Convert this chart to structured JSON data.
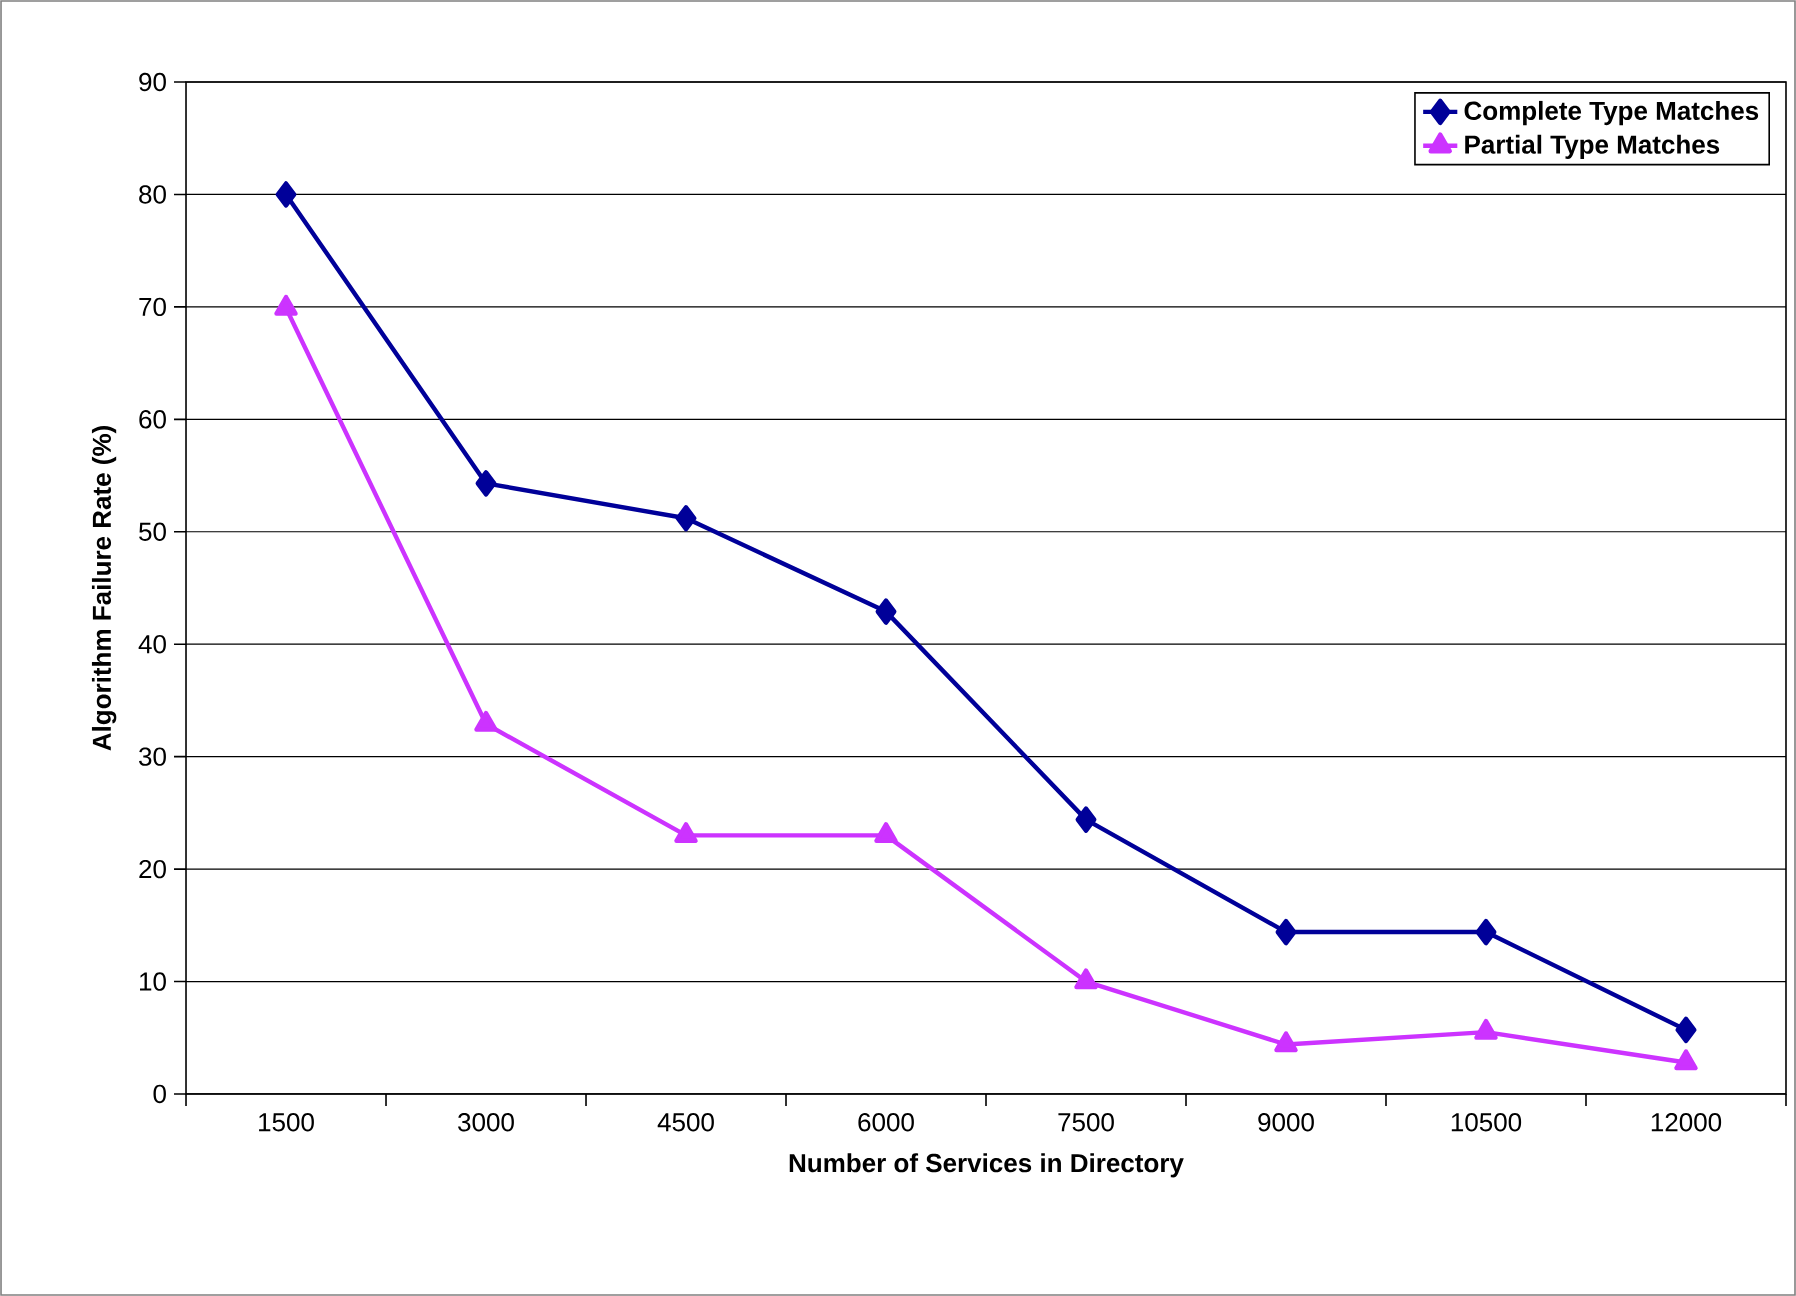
{
  "chart_data": {
    "type": "line",
    "xlabel": "Number of Services in Directory",
    "ylabel": "Algorithm Failure Rate (%)",
    "categories": [
      "1500",
      "3000",
      "4500",
      "6000",
      "7500",
      "9000",
      "10500",
      "12000"
    ],
    "series": [
      {
        "name": "Complete Type Matches",
        "color": "#000099",
        "marker": "diamond",
        "values": [
          80,
          54.3,
          51.2,
          42.9,
          24.4,
          14.4,
          14.4,
          5.7
        ]
      },
      {
        "name": "Partial Type Matches",
        "color": "#cc33ff",
        "marker": "triangle",
        "values": [
          69.9,
          32.9,
          23,
          23,
          10,
          4.4,
          5.5,
          2.8
        ]
      }
    ],
    "ylim": [
      0,
      90
    ],
    "yticks": [
      0,
      10,
      20,
      30,
      40,
      50,
      60,
      70,
      80,
      90
    ],
    "grid": "y",
    "legend": "top right",
    "line_style": "solid"
  }
}
